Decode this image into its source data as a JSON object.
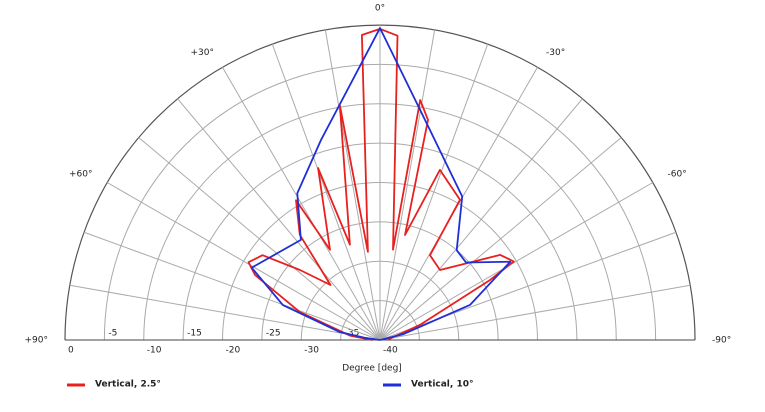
{
  "chart_data": {
    "type": "polar-half",
    "xlabel": "Degree  [deg]",
    "xlim": [
      -90,
      90
    ],
    "xticks": [
      {
        "value": 90,
        "label": "+90°"
      },
      {
        "value": 60,
        "label": "+60°"
      },
      {
        "value": 30,
        "label": "+30°"
      },
      {
        "value": 0,
        "label": "0°"
      },
      {
        "value": -30,
        "label": "-30°"
      },
      {
        "value": -60,
        "label": "-60°"
      },
      {
        "value": -90,
        "label": "-90°"
      }
    ],
    "minor_xticks": [
      80,
      70,
      50,
      40,
      20,
      10,
      -10,
      -20,
      -40,
      -50,
      -70,
      -80
    ],
    "ylim": [
      -40,
      0
    ],
    "yticks": [
      0,
      -5,
      -10,
      -15,
      -20,
      -25,
      -30,
      -35,
      -40
    ],
    "grid": true,
    "series": [
      {
        "name": "Vertical, 2.5°",
        "color": "#e8201e",
        "x": [
          -90,
          -80,
          -69.4,
          -61.4,
          -59.6,
          -54.7,
          -40.6,
          -30.5,
          -29.7,
          -19.4,
          -13.4,
          -12.3,
          -9.5,
          -8.2,
          -3.3,
          0,
          3.4,
          7.8,
          9.7,
          17.5,
          19.8,
          29,
          31,
          37.3,
          42,
          48.8,
          54.2,
          59.4,
          62.5,
          70.7,
          82,
          90
        ],
        "values": [
          -39,
          -38.5,
          -34.6,
          -24.1,
          -20.3,
          -21.3,
          -28.3,
          -27.5,
          -19.5,
          -17.1,
          -26.3,
          -11.4,
          -9.1,
          -28.4,
          -1.3,
          -0.5,
          -1.2,
          -28.7,
          -9.8,
          -27.3,
          -16.8,
          -26.9,
          -19.3,
          -23.2,
          -30.6,
          -26.5,
          -21.6,
          -20.6,
          -22.1,
          -29.2,
          -36.2,
          -39
        ]
      },
      {
        "name": "Vertical, 10°",
        "color": "#1f2fd8",
        "x": [
          -90,
          -76,
          -68.7,
          -59,
          -48,
          -40.5,
          -29.8,
          -13.4,
          0,
          16.4,
          29.4,
          38.3,
          60.6,
          70.2,
          78.7,
          82,
          90
        ],
        "values": [
          -40,
          -37,
          -27.7,
          -20.7,
          -25.3,
          -25,
          -19,
          -12.6,
          -0.4,
          -13.5,
          -18.6,
          -23.8,
          -21.3,
          -26.9,
          -34.8,
          -38,
          -40
        ]
      }
    ]
  }
}
